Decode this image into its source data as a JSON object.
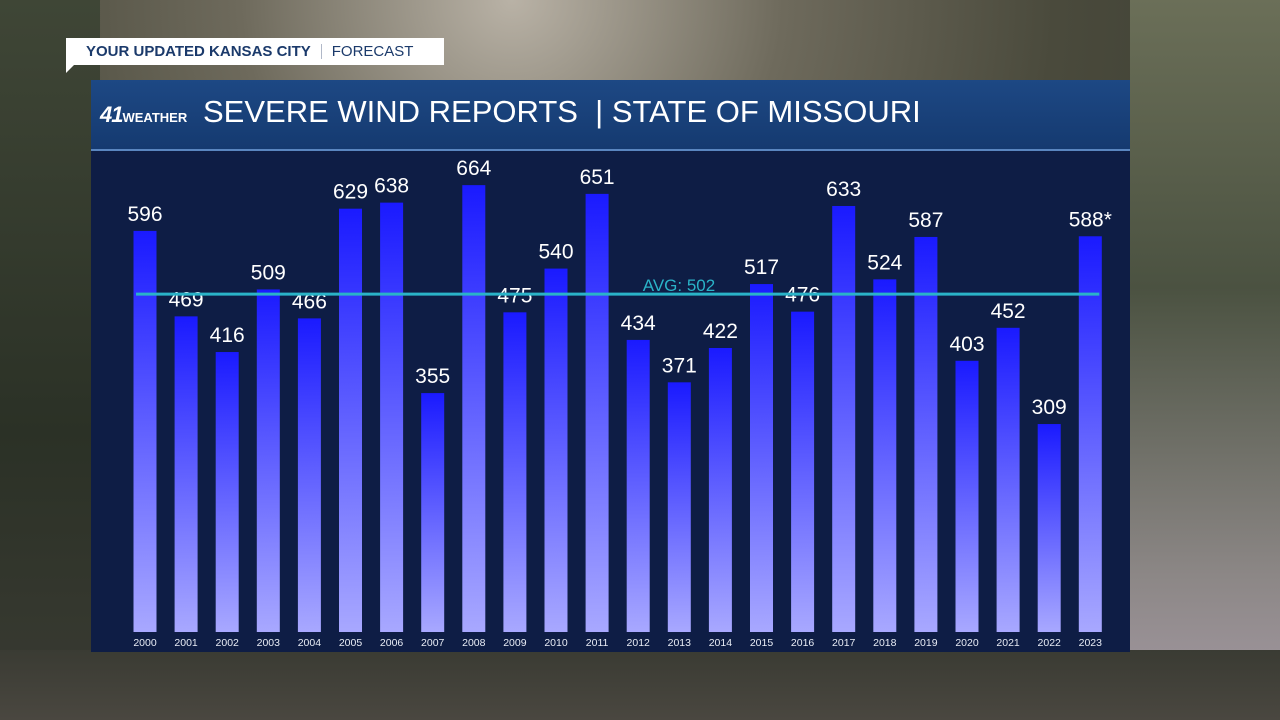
{
  "tag": {
    "bold": "YOUR UPDATED KANSAS CITY",
    "light": "FORECAST"
  },
  "header": {
    "logo_number": "41",
    "logo_word": "WEATHER",
    "title": "SEVERE WIND REPORTS",
    "subtitle": "STATE OF MISSOURI"
  },
  "colors": {
    "bar_top": "#1a1aff",
    "bar_bottom": "#a8a8ff",
    "avg_line": "#2ab3c8",
    "panel": "#0e1d45",
    "header": "#1d4884"
  },
  "chart_data": {
    "type": "bar",
    "title": "SEVERE WIND REPORTS | STATE OF MISSOURI",
    "categories": [
      "2000",
      "2001",
      "2002",
      "2003",
      "2004",
      "2005",
      "2006",
      "2007",
      "2008",
      "2009",
      "2010",
      "2011",
      "2012",
      "2013",
      "2014",
      "2015",
      "2016",
      "2017",
      "2018",
      "2019",
      "2020",
      "2021",
      "2022",
      "2023"
    ],
    "values": [
      596,
      469,
      416,
      509,
      466,
      629,
      638,
      355,
      664,
      475,
      540,
      651,
      434,
      371,
      422,
      517,
      476,
      633,
      524,
      587,
      403,
      452,
      309,
      588
    ],
    "labels": [
      "596",
      "469",
      "416",
      "509",
      "466",
      "629",
      "638",
      "355",
      "664",
      "475",
      "540",
      "651",
      "434",
      "371",
      "422",
      "517",
      "476",
      "633",
      "524",
      "587",
      "403",
      "452",
      "309",
      "588*"
    ],
    "average": {
      "value": 502,
      "label": "AVG: 502"
    },
    "ylim": [
      0,
      700
    ],
    "grid": false
  }
}
